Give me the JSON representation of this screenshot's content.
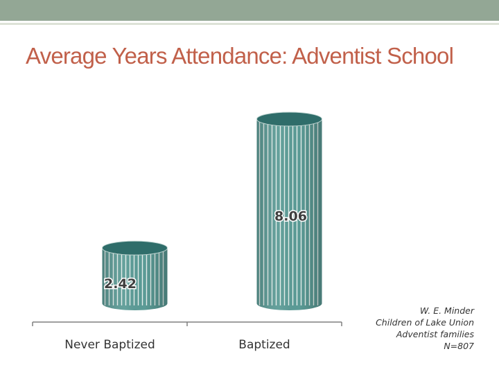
{
  "slide": {
    "title": "Average Years Attendance: Adventist School"
  },
  "colors": {
    "top_bar": "#93a795",
    "title": "#c1604a",
    "bar_body": "#5b9b96",
    "bar_stripe": "#e6efec",
    "bar_top": "#2f6d6a",
    "axis": "#7f7f7f",
    "label": "#333333",
    "value_label": "#3f3f3f"
  },
  "chart_data": {
    "type": "bar",
    "style": "3d-cylinder",
    "title": "Average Years Attendance: Adventist School",
    "categories": [
      "Never Baptized",
      "Baptized"
    ],
    "values": [
      2.42,
      8.06
    ],
    "value_labels": [
      "2.42",
      "8.06"
    ],
    "xlabel": "",
    "ylabel": "",
    "ylim": [
      0,
      10
    ],
    "grid": false,
    "legend": "none"
  },
  "credit": {
    "lines": [
      "W. E. Minder",
      "Children of Lake Union",
      "Adventist families",
      "N=807"
    ]
  }
}
